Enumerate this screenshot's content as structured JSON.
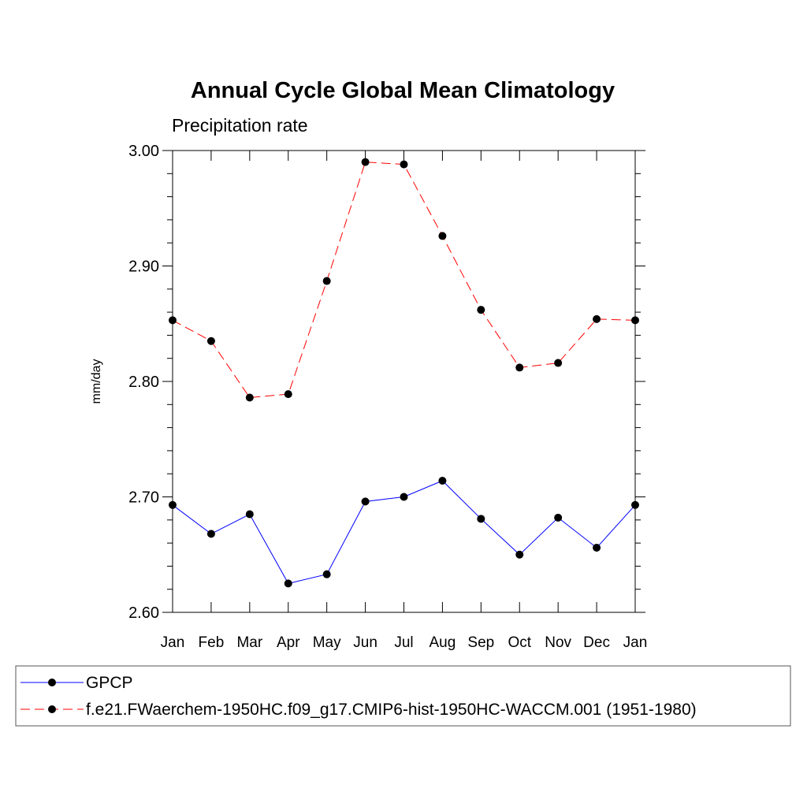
{
  "chart_data": {
    "type": "line",
    "title": "Annual Cycle Global Mean Climatology",
    "subtitle": "Precipitation rate",
    "xlabel": "",
    "ylabel": "mm/day",
    "categories": [
      "Jan",
      "Feb",
      "Mar",
      "Apr",
      "May",
      "Jun",
      "Jul",
      "Aug",
      "Sep",
      "Oct",
      "Nov",
      "Dec",
      "Jan"
    ],
    "ylim": [
      2.6,
      3.0
    ],
    "yticks": [
      "2.60",
      "2.70",
      "2.80",
      "2.90",
      "3.00"
    ],
    "grid": false,
    "legend_position": "bottom",
    "series": [
      {
        "name": "GPCP",
        "color": "#0000ff",
        "line_style": "solid",
        "marker": "filled-circle",
        "values": [
          2.693,
          2.668,
          2.685,
          2.625,
          2.633,
          2.696,
          2.7,
          2.714,
          2.681,
          2.65,
          2.682,
          2.656,
          2.693
        ]
      },
      {
        "name": "f.e21.FWaerchem-1950HC.f09_g17.CMIP6-hist-1950HC-WACCM.001 (1951-1980)",
        "color": "#ff0000",
        "line_style": "dashed",
        "marker": "filled-circle",
        "values": [
          2.853,
          2.835,
          2.786,
          2.789,
          2.887,
          2.99,
          2.988,
          2.926,
          2.862,
          2.812,
          2.816,
          2.854,
          2.853
        ]
      }
    ]
  }
}
